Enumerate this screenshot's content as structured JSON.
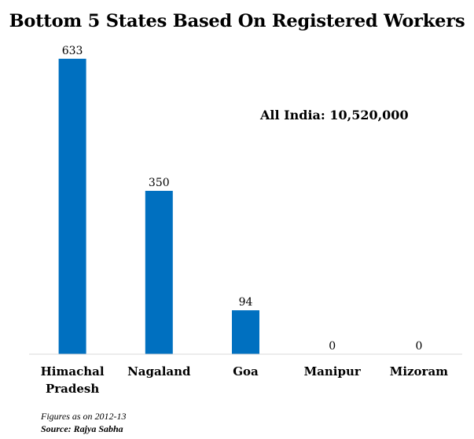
{
  "chart_data": {
    "type": "bar",
    "title": "Bottom 5 States Based On Registered Workers",
    "categories": [
      "Himachal Pradesh",
      "Nagaland",
      "Goa",
      "Manipur",
      "Mizoram"
    ],
    "category_lines": [
      [
        "Himachal",
        "Pradesh"
      ],
      [
        "Nagaland"
      ],
      [
        "Goa"
      ],
      [
        "Manipur"
      ],
      [
        "Mizoram"
      ]
    ],
    "values": [
      633,
      350,
      94,
      0,
      0
    ],
    "value_labels": [
      "633",
      "350",
      "94",
      "0",
      "0"
    ],
    "ylim": [
      0,
      700
    ],
    "grid": false,
    "legend": "none",
    "bar_color": "#0070c0",
    "annotation": "All India: 10,520,000"
  },
  "footer": {
    "note": "Figures as on 2012-13",
    "source": "Source: Rajya Sabha"
  }
}
